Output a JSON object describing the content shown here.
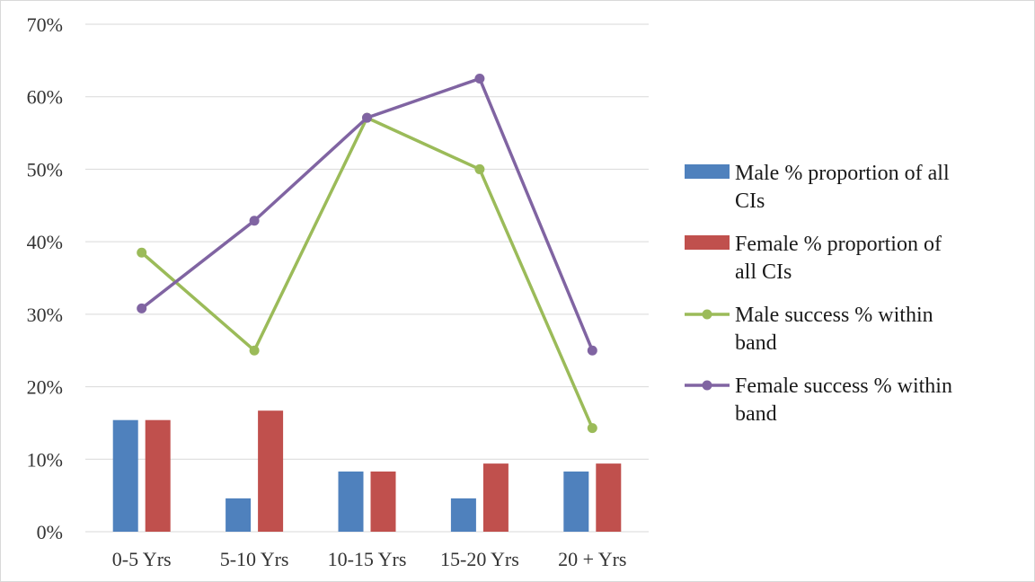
{
  "chart_data": {
    "type": "bar",
    "categories": [
      "0-5 Yrs",
      "5-10 Yrs",
      "10-15 Yrs",
      "15-20 Yrs",
      "20 + Yrs"
    ],
    "y_ticks": [
      "0%",
      "10%",
      "20%",
      "30%",
      "40%",
      "50%",
      "60%",
      "70%"
    ],
    "ylim": [
      0,
      70
    ],
    "grid": true,
    "legend_position": "right",
    "bar_series": [
      {
        "name": "Male % proportion of all CIs",
        "legend_lines": [
          "Male % proportion of all",
          "CIs"
        ],
        "color": "#4F81BD",
        "values": [
          15.4,
          4.6,
          8.3,
          4.6,
          8.3
        ]
      },
      {
        "name": "Female % proportion of all CIs",
        "legend_lines": [
          "Female % proportion of",
          "all CIs"
        ],
        "color": "#C0504D",
        "values": [
          15.4,
          16.7,
          8.3,
          9.4,
          9.4
        ]
      }
    ],
    "line_series": [
      {
        "name": "Male success % within band",
        "legend_lines": [
          "Male success % within",
          "band"
        ],
        "color": "#9BBB59",
        "values": [
          38.5,
          25.0,
          57.1,
          50.0,
          14.3
        ]
      },
      {
        "name": "Female success % within band",
        "legend_lines": [
          "Female success % within",
          "band"
        ],
        "color": "#8064A2",
        "values": [
          30.8,
          42.9,
          57.1,
          62.5,
          25.0
        ]
      }
    ]
  }
}
